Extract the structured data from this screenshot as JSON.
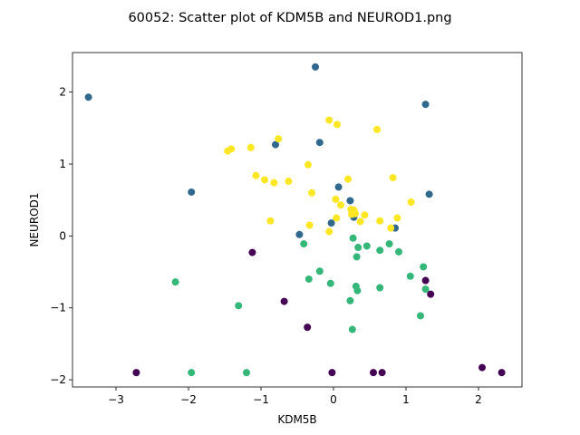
{
  "chart_data": {
    "type": "scatter",
    "title": "60052: Scatter plot of KDM5B and NEUROD1.png",
    "xlabel": "KDM5B",
    "ylabel": "NEUROD1",
    "xlim": [
      -3.6,
      2.6
    ],
    "ylim": [
      -2.1,
      2.55
    ],
    "xticks": [
      -3,
      -2,
      -1,
      0,
      1,
      2
    ],
    "yticks": [
      -2,
      -1,
      0,
      1,
      2
    ],
    "xtick_labels": [
      "−3",
      "−2",
      "−1",
      "0",
      "1",
      "2"
    ],
    "ytick_labels": [
      "−2",
      "−1",
      "0",
      "1",
      "2"
    ],
    "grid": false,
    "legend": "none",
    "colors": {
      "purple": "#440154",
      "blue": "#31688e",
      "green": "#35b779",
      "yellow": "#fde725"
    },
    "series": [
      {
        "color": "#440154",
        "x": [
          -2.72,
          -1.12,
          -0.68,
          -0.36,
          1.27,
          1.34,
          -0.02,
          0.55,
          0.67,
          2.05,
          2.32
        ],
        "y": [
          -1.9,
          -0.23,
          -0.91,
          -1.27,
          -0.62,
          -0.81,
          -1.9,
          -1.9,
          -1.9,
          -1.83,
          -1.9
        ]
      },
      {
        "color": "#31688e",
        "x": [
          -3.38,
          -0.25,
          1.27,
          -0.8,
          -0.19,
          -1.96,
          0.07,
          0.23,
          1.32,
          -0.47,
          -0.03,
          0.85,
          0.28
        ],
        "y": [
          1.93,
          2.35,
          1.83,
          1.27,
          1.3,
          0.61,
          0.68,
          0.49,
          0.58,
          0.02,
          0.18,
          0.11,
          0.26
        ]
      },
      {
        "color": "#35b779",
        "x": [
          -2.18,
          -1.96,
          -1.31,
          -1.2,
          -0.41,
          -0.34,
          -0.19,
          -0.04,
          0.23,
          0.26,
          0.27,
          0.31,
          0.32,
          0.34,
          0.46,
          0.33,
          0.64,
          0.77,
          0.9,
          1.06,
          1.2,
          1.24,
          1.27,
          0.64
        ],
        "y": [
          -0.64,
          -1.9,
          -0.97,
          -1.9,
          -0.11,
          -0.6,
          -0.49,
          -0.66,
          -0.9,
          -1.3,
          -0.03,
          -0.7,
          -0.29,
          -0.16,
          -0.14,
          -0.76,
          -0.72,
          -0.11,
          -0.22,
          -0.56,
          -1.11,
          -0.43,
          -0.74,
          -0.2
        ]
      },
      {
        "color": "#fde725",
        "x": [
          -1.46,
          -1.41,
          -1.14,
          -1.07,
          -0.95,
          -0.82,
          -0.76,
          -0.62,
          -0.87,
          -0.35,
          -0.3,
          -0.33,
          -0.06,
          0.05,
          0.6,
          0.82,
          0.03,
          0.1,
          0.2,
          0.24,
          0.28,
          0.3,
          0.04,
          0.25,
          0.37,
          0.43,
          0.64,
          0.79,
          0.88,
          1.07,
          -0.06
        ],
        "y": [
          1.18,
          1.21,
          1.23,
          0.84,
          0.78,
          0.74,
          1.35,
          0.76,
          0.21,
          0.99,
          0.6,
          0.15,
          1.61,
          1.55,
          1.48,
          0.81,
          0.51,
          0.43,
          0.79,
          0.37,
          0.36,
          0.31,
          0.25,
          0.3,
          0.2,
          0.29,
          0.21,
          0.11,
          0.25,
          0.47,
          0.06
        ]
      }
    ]
  }
}
